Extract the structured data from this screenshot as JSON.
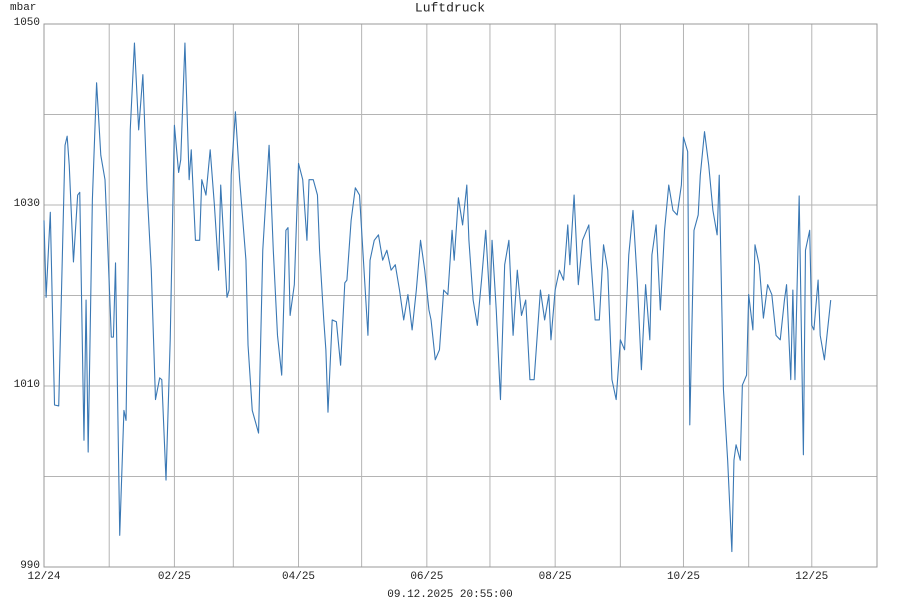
{
  "chart_data": {
    "type": "line",
    "title": "Luftdruck",
    "y_label": "mbar",
    "footer": "09.12.2025 20:55:00",
    "color": "#3a78b4",
    "grid": true,
    "xlim": [
      0,
      396
    ],
    "ylim": [
      990,
      1050
    ],
    "yticks": [
      990,
      1010,
      1030,
      1050
    ],
    "yminor": [
      1000,
      1020,
      1040
    ],
    "xticks": [
      {
        "value": 0,
        "label": "12/24"
      },
      {
        "value": 62,
        "label": "02/25"
      },
      {
        "value": 121,
        "label": "04/25"
      },
      {
        "value": 182,
        "label": "06/25"
      },
      {
        "value": 243,
        "label": "08/25"
      },
      {
        "value": 304,
        "label": "10/25"
      },
      {
        "value": 365,
        "label": "12/25"
      }
    ],
    "xminor": [
      31,
      90,
      151,
      212,
      274,
      335
    ],
    "x": [
      0,
      1,
      3,
      5,
      7,
      10,
      11,
      12,
      14,
      16,
      17,
      19,
      20,
      21,
      23,
      25,
      27,
      29,
      30,
      32,
      33,
      34,
      36,
      38,
      39,
      41,
      43,
      45,
      47,
      49,
      51,
      53,
      55,
      56,
      58,
      60,
      62,
      64,
      65,
      67,
      69,
      70,
      72,
      74,
      75,
      77,
      79,
      81,
      83,
      84,
      87,
      88,
      89,
      91,
      93,
      96,
      97,
      99,
      102,
      104,
      107,
      109,
      111,
      113,
      115,
      116,
      117,
      119,
      121,
      123,
      125,
      126,
      128,
      130,
      131,
      133,
      134,
      135,
      137,
      139,
      141,
      143,
      144,
      146,
      148,
      150,
      151,
      154,
      155,
      157,
      159,
      161,
      163,
      165,
      167,
      169,
      171,
      173,
      175,
      177,
      179,
      181,
      183,
      184,
      186,
      188,
      190,
      192,
      194,
      195,
      197,
      199,
      201,
      202,
      204,
      206,
      208,
      210,
      212,
      213,
      215,
      217,
      219,
      221,
      223,
      225,
      227,
      229,
      231,
      233,
      236,
      238,
      240,
      241,
      243,
      245,
      247,
      249,
      250,
      252,
      254,
      256,
      259,
      260,
      262,
      264,
      266,
      268,
      270,
      272,
      274,
      276,
      278,
      280,
      282,
      284,
      286,
      288,
      289,
      291,
      293,
      295,
      297,
      299,
      301,
      303,
      304,
      306,
      307,
      309,
      311,
      312,
      314,
      316,
      318,
      320,
      321,
      323,
      325,
      327,
      328,
      329,
      331,
      332,
      334,
      335,
      337,
      338,
      340,
      342,
      344,
      346,
      348,
      350,
      352,
      353,
      355,
      356,
      357,
      359,
      361,
      362,
      364,
      365,
      366,
      368,
      369,
      371,
      372,
      374
    ],
    "values": [
      1028.3,
      1019.8,
      1029.2,
      1007.9,
      1007.8,
      1036.6,
      1037.6,
      1034.4,
      1023.7,
      1031.1,
      1031.4,
      1004.0,
      1019.5,
      1002.7,
      1030.6,
      1043.5,
      1035.5,
      1032.8,
      1027.2,
      1015.4,
      1015.4,
      1023.6,
      993.5,
      1007.3,
      1006.2,
      1038.3,
      1047.9,
      1038.3,
      1044.4,
      1031.7,
      1022.8,
      1008.5,
      1010.9,
      1010.7,
      999.6,
      1015.1,
      1038.8,
      1033.6,
      1035.0,
      1047.9,
      1032.8,
      1036.1,
      1026.1,
      1026.1,
      1032.8,
      1031.1,
      1036.1,
      1030.0,
      1022.8,
      1032.2,
      1019.8,
      1020.6,
      1033.3,
      1040.3,
      1032.8,
      1023.9,
      1014.5,
      1007.3,
      1004.8,
      1025.0,
      1036.6,
      1025.0,
      1015.6,
      1011.2,
      1027.2,
      1027.5,
      1017.8,
      1021.2,
      1034.6,
      1032.8,
      1026.1,
      1032.8,
      1032.8,
      1031.1,
      1025.0,
      1017.3,
      1014.0,
      1007.1,
      1017.3,
      1017.1,
      1012.3,
      1021.4,
      1021.7,
      1028.3,
      1031.9,
      1031.1,
      1027.2,
      1015.6,
      1023.9,
      1026.1,
      1026.7,
      1023.9,
      1025.0,
      1022.8,
      1023.4,
      1020.6,
      1017.3,
      1020.1,
      1016.2,
      1020.6,
      1026.1,
      1022.8,
      1018.4,
      1017.3,
      1012.9,
      1014.0,
      1020.6,
      1020.1,
      1027.2,
      1023.9,
      1030.8,
      1027.8,
      1032.2,
      1026.1,
      1019.5,
      1016.7,
      1021.7,
      1027.2,
      1019.0,
      1026.1,
      1018.4,
      1008.5,
      1023.4,
      1026.1,
      1015.6,
      1022.8,
      1017.8,
      1019.5,
      1010.7,
      1010.7,
      1020.6,
      1017.3,
      1020.1,
      1015.1,
      1020.6,
      1022.8,
      1021.7,
      1027.8,
      1023.4,
      1031.1,
      1021.2,
      1026.1,
      1027.8,
      1023.9,
      1017.3,
      1017.3,
      1025.6,
      1022.8,
      1010.7,
      1008.5,
      1015.1,
      1014.0,
      1024.5,
      1029.4,
      1021.7,
      1011.8,
      1021.2,
      1015.1,
      1024.5,
      1027.8,
      1018.4,
      1027.2,
      1032.2,
      1029.4,
      1028.9,
      1032.2,
      1037.5,
      1035.9,
      1005.7,
      1027.2,
      1028.9,
      1033.3,
      1038.1,
      1034.4,
      1029.4,
      1026.7,
      1033.3,
      1009.6,
      1001.8,
      991.7,
      1001.8,
      1003.5,
      1001.8,
      1010.1,
      1011.2,
      1020.1,
      1016.2,
      1025.6,
      1023.4,
      1017.5,
      1021.2,
      1020.1,
      1015.6,
      1015.1,
      1019.5,
      1021.2,
      1010.7,
      1020.6,
      1010.7,
      1031.0,
      1002.4,
      1025.0,
      1027.2,
      1016.7,
      1016.2,
      1021.7,
      1015.6,
      1012.9,
      1015.1,
      1019.5
    ]
  }
}
